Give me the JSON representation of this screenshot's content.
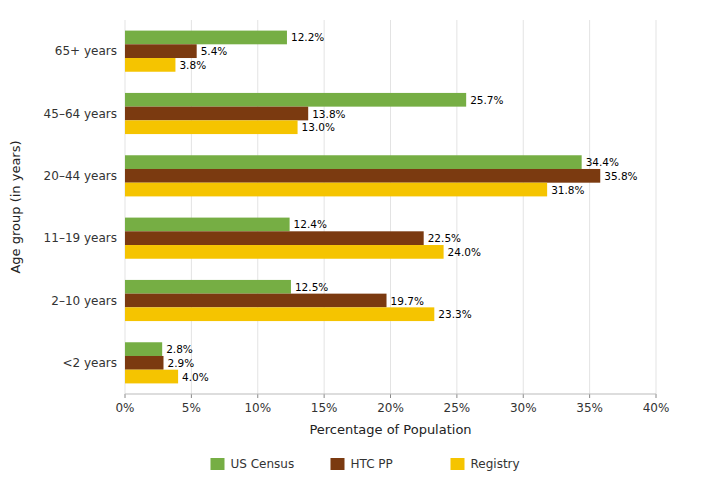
{
  "chart_data": {
    "type": "bar",
    "orientation": "horizontal",
    "categories": [
      "<2 years",
      "2–10 years",
      "11–19 years",
      "20–44 years",
      "45–64 years",
      "65+ years"
    ],
    "series": [
      {
        "name": "US Census",
        "color": "#76AE44",
        "values": [
          2.8,
          12.5,
          12.4,
          34.4,
          25.7,
          12.2
        ],
        "value_labels": [
          "2.8%",
          "12.5%",
          "12.4%",
          "34.4%",
          "25.7%",
          "12.2%"
        ]
      },
      {
        "name": "HTC PP",
        "color": "#7B3A10",
        "values": [
          2.9,
          19.7,
          22.5,
          35.8,
          13.8,
          5.4
        ],
        "value_labels": [
          "2.9%",
          "19.7%",
          "22.5%",
          "35.8%",
          "13.8%",
          "5.4%"
        ]
      },
      {
        "name": "Registry",
        "color": "#F5C400",
        "values": [
          4.0,
          23.3,
          24.0,
          31.8,
          13.0,
          3.8
        ],
        "value_labels": [
          "4.0%",
          "23.3%",
          "24.0%",
          "31.8%",
          "13.0%",
          "3.8%"
        ]
      }
    ],
    "xlabel": "Percentage of Population",
    "ylabel": "Age group (in years)",
    "xlim": [
      0,
      40
    ],
    "xticks": [
      {
        "value": 0,
        "label": "0%"
      },
      {
        "value": 5,
        "label": "5%"
      },
      {
        "value": 10,
        "label": "10%"
      },
      {
        "value": 15,
        "label": "15%"
      },
      {
        "value": 20,
        "label": "20%"
      },
      {
        "value": 25,
        "label": "25%"
      },
      {
        "value": 30,
        "label": "30%"
      },
      {
        "value": 35,
        "label": "35%"
      },
      {
        "value": 40,
        "label": "40%"
      }
    ],
    "grid": true,
    "legend": "bottom",
    "data_labels": true
  }
}
